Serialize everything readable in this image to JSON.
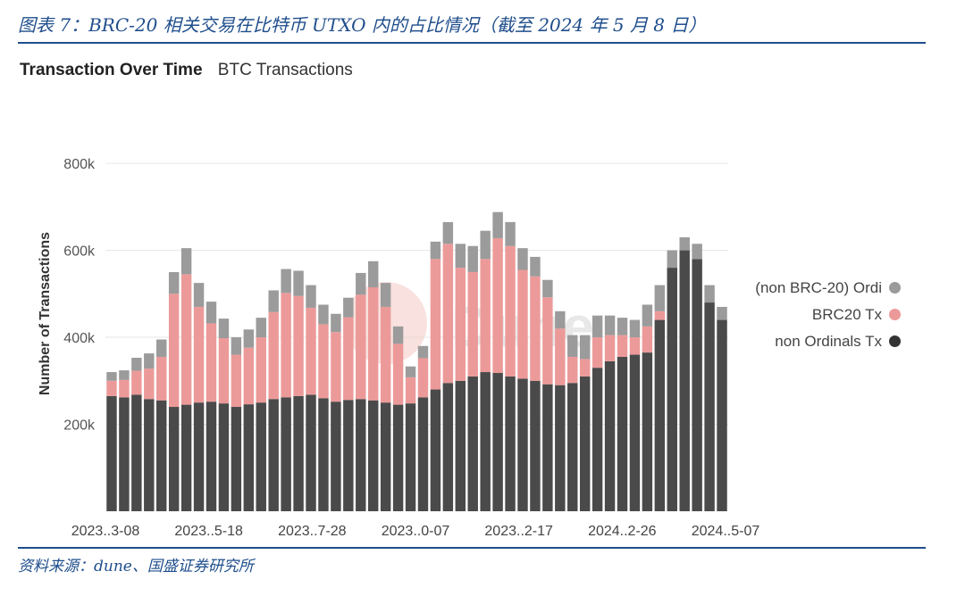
{
  "figure": {
    "caption": "图表 7：BRC-20 相关交易在比特币 UTXO 内的占比情况（截至 2024 年 5 月 8 日）",
    "source": "资料来源：dune、国盛证券研究所"
  },
  "panel": {
    "title": "Transaction Over Time",
    "subtitle": "BTC Transactions",
    "watermark": "Dune"
  },
  "colors": {
    "non_ordinals": "#4a4a4a",
    "brc20": "#ec9a99",
    "non_brc20_ordi": "#9b9b9b",
    "rule": "#1f4e8c"
  },
  "chart_data": {
    "type": "bar",
    "stacked": true,
    "ylabel": "Number of Transactions",
    "ylim": [
      0,
      950000
    ],
    "yticks": [
      200000,
      400000,
      600000,
      800000
    ],
    "ytick_labels": [
      "200k",
      "400k",
      "600k",
      "800k"
    ],
    "xtick_labels": [
      "2023..3-08",
      "2023..5-18",
      "2023..7-28",
      "2023..0-07",
      "2023..2-17",
      "2024..2-26",
      "2024..5-07"
    ],
    "grid": true,
    "legend_position": "right",
    "legend": [
      "(non BRC-20) Ordi",
      "BRC20 Tx",
      "non Ordinals Tx"
    ],
    "series": [
      {
        "name": "non Ordinals Tx",
        "color": "#4a4a4a",
        "values": [
          265000,
          262000,
          268000,
          258000,
          255000,
          240000,
          245000,
          250000,
          252000,
          248000,
          240000,
          246000,
          250000,
          258000,
          262000,
          265000,
          268000,
          260000,
          252000,
          256000,
          258000,
          255000,
          250000,
          245000,
          248000,
          262000,
          280000,
          295000,
          300000,
          310000,
          320000,
          318000,
          310000,
          305000,
          300000,
          292000,
          290000,
          295000,
          310000,
          330000,
          345000,
          355000,
          360000,
          365000,
          440000,
          560000,
          600000,
          580000,
          480000,
          440000
        ]
      },
      {
        "name": "BRC20 Tx",
        "color": "#ec9a99",
        "values": [
          35000,
          40000,
          55000,
          70000,
          100000,
          260000,
          300000,
          220000,
          180000,
          150000,
          120000,
          130000,
          150000,
          200000,
          240000,
          230000,
          200000,
          170000,
          160000,
          190000,
          240000,
          260000,
          220000,
          140000,
          60000,
          90000,
          300000,
          320000,
          260000,
          240000,
          260000,
          310000,
          300000,
          250000,
          240000,
          200000,
          130000,
          60000,
          40000,
          70000,
          60000,
          50000,
          40000,
          60000,
          20000,
          0,
          0,
          0,
          0,
          0
        ]
      },
      {
        "name": "(non BRC-20) Ordi",
        "color": "#9b9b9b",
        "values": [
          20000,
          22000,
          30000,
          35000,
          40000,
          50000,
          60000,
          55000,
          50000,
          45000,
          40000,
          42000,
          45000,
          50000,
          55000,
          58000,
          52000,
          45000,
          42000,
          45000,
          50000,
          60000,
          55000,
          40000,
          25000,
          28000,
          40000,
          50000,
          55000,
          60000,
          65000,
          60000,
          55000,
          50000,
          45000,
          40000,
          40000,
          50000,
          55000,
          50000,
          45000,
          40000,
          40000,
          50000,
          60000,
          40000,
          30000,
          35000,
          40000,
          30000
        ]
      }
    ]
  }
}
